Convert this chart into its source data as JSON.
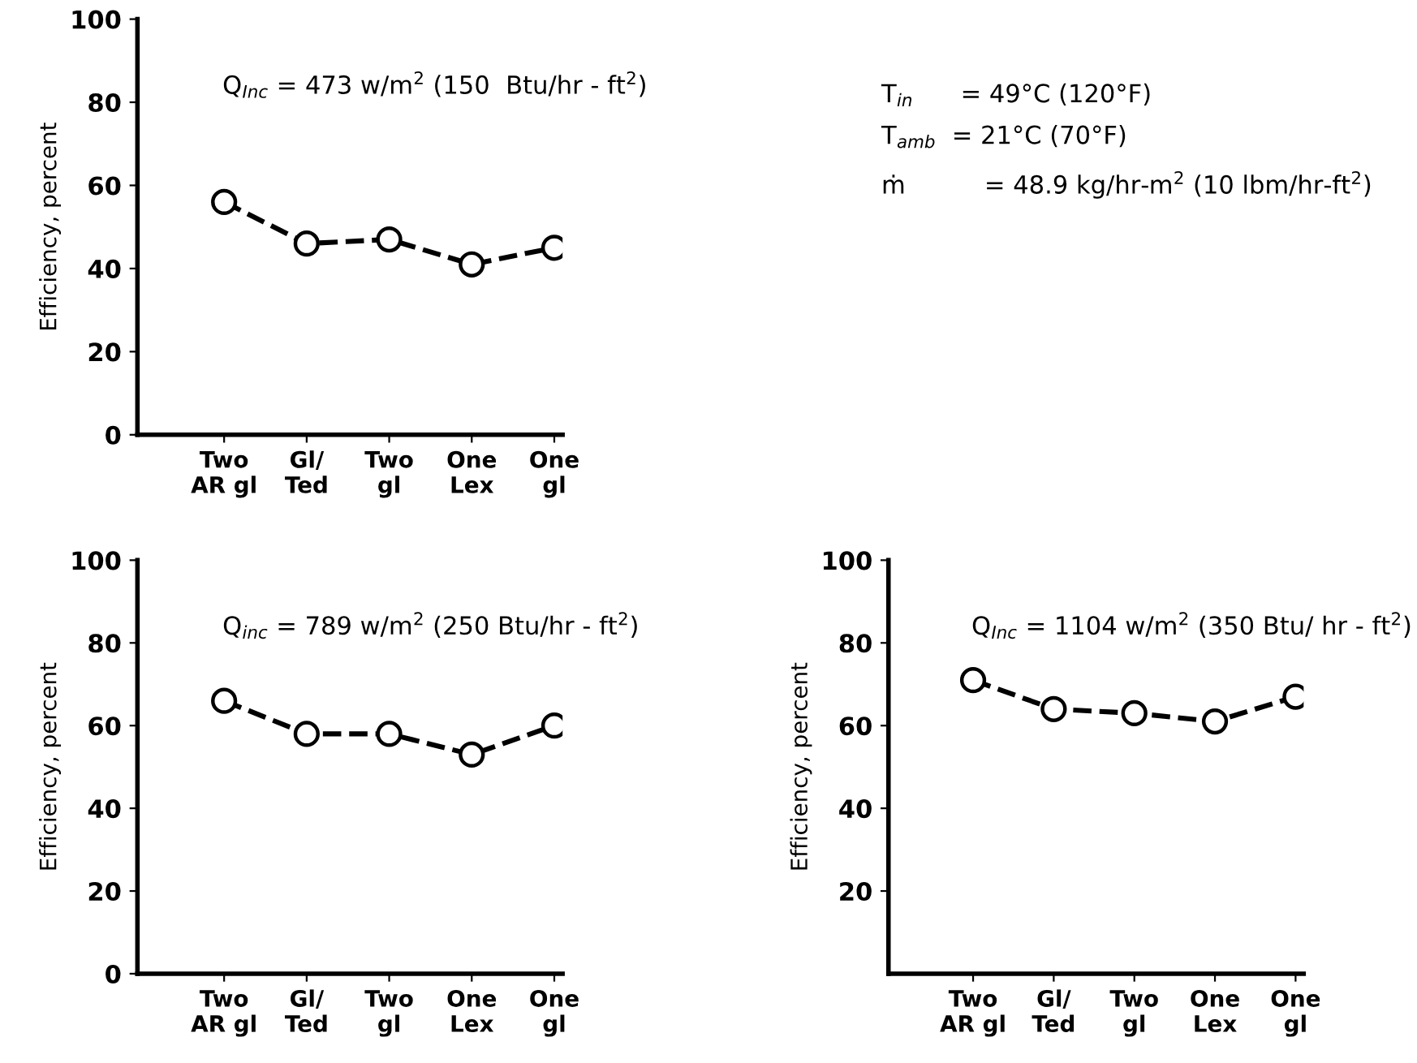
{
  "chart_data": [
    {
      "type": "line",
      "categories": [
        "Two\nAR gl",
        "Gl/\nTed",
        "Two\ngl",
        "One\nLex",
        "One\ngl"
      ],
      "ylabel": "Efficiency, percent",
      "ylim": [
        0,
        100
      ],
      "yticks": [
        0,
        20,
        40,
        60,
        80,
        100
      ],
      "marker": "circle",
      "line_style": "dashed",
      "grid": false,
      "legend": false,
      "series": [
        {
          "color": "#000000",
          "values": [
            56,
            46,
            47,
            41,
            45
          ]
        }
      ],
      "annotations": [
        "Q$_{Inc}$ = 473 w/m$^{2}$ (150  Btu/hr - ft$^{2}$)",
        "T$_{in}$      = 49°C (120°F)",
        "T$_{amb}$  = 21°C (70°F)",
        "ṁ          = 48.9 kg/hr-m$^{2}$ (10 lbm/hr-ft$^{2}$)"
      ]
    },
    {
      "type": "line",
      "categories": [
        "Two\nAR gl",
        "Gl/\nTed",
        "Two\ngl",
        "One\nLex",
        "One\ngl"
      ],
      "ylabel": "Efficiency, percent",
      "ylim": [
        0,
        100
      ],
      "yticks": [
        0,
        20,
        40,
        60,
        80,
        100
      ],
      "marker": "circle",
      "line_style": "dashed",
      "grid": false,
      "legend": false,
      "series": [
        {
          "color": "#000000",
          "values": [
            66,
            58,
            58,
            53,
            60
          ]
        }
      ],
      "annotations": [
        "Q$_{inc}$ = 789 w/m$^{2}$ (250 Btu/hr - ft$^{2}$)"
      ]
    },
    {
      "type": "line",
      "categories": [
        "Two\nAR gl",
        "Gl/\nTed",
        "Two\ngl",
        "One\nLex",
        "One\ngl"
      ],
      "ylabel": "Efficiency, percent",
      "ylim": [
        0,
        100
      ],
      "yticks": [
        20,
        40,
        60,
        80,
        100
      ],
      "marker": "circle",
      "line_style": "dashed",
      "grid": false,
      "legend": false,
      "series": [
        {
          "color": "#000000",
          "values": [
            71,
            64,
            63,
            61,
            67
          ]
        }
      ],
      "annotations": [
        "Q$_{Inc}$ = 1104 w/m$^{2}$ (350 Btu/ hr - ft$^{2}$)"
      ]
    }
  ]
}
